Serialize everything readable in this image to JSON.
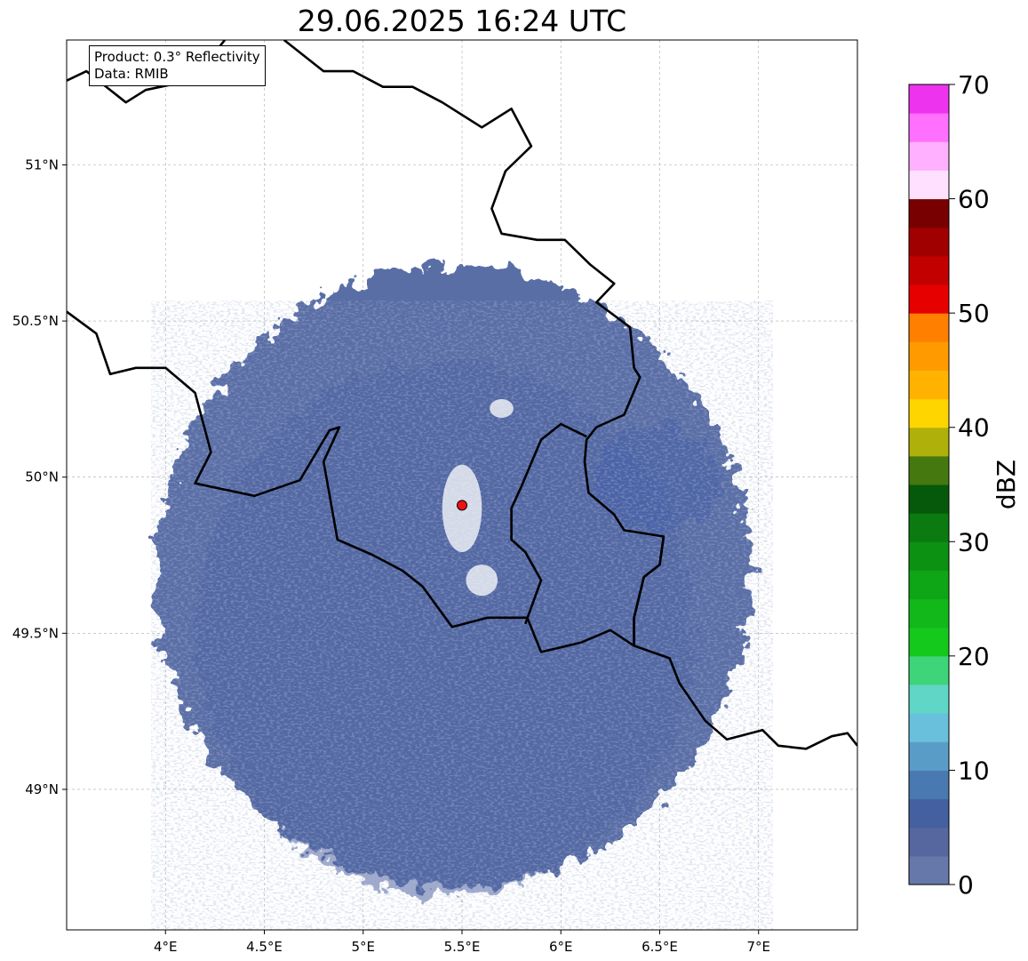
{
  "title": "29.06.2025 16:24 UTC",
  "info": {
    "product": "Product: 0.3° Reflectivity",
    "data": "Data: RMIB"
  },
  "map": {
    "lon_range": [
      3.5,
      7.5
    ],
    "lat_range": [
      48.55,
      51.4
    ],
    "lon_ticks": [
      {
        "v": 4.0,
        "label": "4°E"
      },
      {
        "v": 4.5,
        "label": "4.5°E"
      },
      {
        "v": 5.0,
        "label": "5°E"
      },
      {
        "v": 5.5,
        "label": "5.5°E"
      },
      {
        "v": 6.0,
        "label": "6°E"
      },
      {
        "v": 6.5,
        "label": "6.5°E"
      },
      {
        "v": 7.0,
        "label": "7°E"
      }
    ],
    "lat_ticks": [
      {
        "v": 51.0,
        "label": "51°N"
      },
      {
        "v": 50.5,
        "label": "50.5°N"
      },
      {
        "v": 50.0,
        "label": "50°N"
      },
      {
        "v": 49.5,
        "label": "49.5°N"
      },
      {
        "v": 49.0,
        "label": "49°N"
      }
    ],
    "radar_site": {
      "lon": 5.5,
      "lat": 49.91
    },
    "borders": [
      [
        [
          3.5,
          51.27
        ],
        [
          3.6,
          51.3
        ],
        [
          3.8,
          51.2
        ],
        [
          3.9,
          51.24
        ],
        [
          4.05,
          51.26
        ],
        [
          4.2,
          51.32
        ],
        [
          4.3,
          51.4
        ]
      ],
      [
        [
          4.6,
          51.4
        ],
        [
          4.8,
          51.3
        ],
        [
          4.95,
          51.3
        ],
        [
          5.1,
          51.25
        ],
        [
          5.25,
          51.25
        ],
        [
          5.4,
          51.2
        ],
        [
          5.6,
          51.12
        ],
        [
          5.75,
          51.18
        ],
        [
          5.85,
          51.06
        ],
        [
          5.72,
          50.98
        ],
        [
          5.65,
          50.86
        ],
        [
          5.7,
          50.78
        ],
        [
          5.88,
          50.76
        ],
        [
          6.02,
          50.76
        ],
        [
          6.15,
          50.68
        ],
        [
          6.27,
          50.62
        ],
        [
          6.18,
          50.56
        ],
        [
          6.35,
          50.48
        ],
        [
          6.37,
          50.35
        ],
        [
          6.4,
          50.32
        ],
        [
          6.32,
          50.2
        ],
        [
          6.18,
          50.16
        ],
        [
          6.13,
          50.12
        ],
        [
          6.12,
          50.05
        ],
        [
          6.14,
          49.95
        ],
        [
          6.27,
          49.88
        ],
        [
          6.32,
          49.83
        ],
        [
          6.52,
          49.81
        ],
        [
          6.5,
          49.72
        ],
        [
          6.42,
          49.68
        ],
        [
          6.37,
          49.55
        ],
        [
          6.37,
          49.46
        ],
        [
          6.55,
          49.42
        ],
        [
          6.6,
          49.34
        ],
        [
          6.73,
          49.22
        ],
        [
          6.84,
          49.16
        ],
        [
          7.02,
          49.19
        ],
        [
          7.1,
          49.14
        ],
        [
          7.24,
          49.13
        ],
        [
          7.37,
          49.17
        ],
        [
          7.45,
          49.18
        ],
        [
          7.5,
          49.14
        ]
      ],
      [
        [
          3.5,
          50.53
        ],
        [
          3.65,
          50.46
        ],
        [
          3.72,
          50.33
        ],
        [
          3.85,
          50.35
        ],
        [
          4.0,
          50.35
        ],
        [
          4.15,
          50.27
        ],
        [
          4.23,
          50.08
        ],
        [
          4.15,
          49.98
        ],
        [
          4.45,
          49.94
        ],
        [
          4.68,
          49.99
        ],
        [
          4.83,
          50.15
        ],
        [
          4.88,
          50.16
        ],
        [
          4.8,
          50.05
        ],
        [
          4.87,
          49.8
        ],
        [
          5.05,
          49.75
        ],
        [
          5.2,
          49.7
        ],
        [
          5.3,
          49.65
        ],
        [
          5.45,
          49.52
        ],
        [
          5.63,
          49.55
        ],
        [
          5.83,
          49.55
        ],
        [
          5.9,
          49.44
        ],
        [
          6.1,
          49.47
        ],
        [
          6.25,
          49.51
        ],
        [
          6.37,
          49.46
        ]
      ],
      [
        [
          5.82,
          49.53
        ],
        [
          5.9,
          49.67
        ],
        [
          5.82,
          49.76
        ],
        [
          5.75,
          49.8
        ],
        [
          5.75,
          49.9
        ],
        [
          5.8,
          49.97
        ],
        [
          5.9,
          50.12
        ],
        [
          6.0,
          50.17
        ],
        [
          6.13,
          50.13
        ]
      ],
      [
        [
          6.37,
          49.46
        ],
        [
          6.37,
          49.55
        ],
        [
          6.42,
          49.68
        ],
        [
          6.5,
          49.72
        ],
        [
          6.52,
          49.81
        ]
      ]
    ],
    "blank_patches": [
      {
        "lon": 5.6,
        "lat": 49.67,
        "rx": 0.08,
        "ry": 0.05
      },
      {
        "lon": 5.7,
        "lat": 50.22,
        "rx": 0.06,
        "ry": 0.03
      },
      {
        "lon": 5.5,
        "lat": 49.9,
        "rx": 0.1,
        "ry": 0.14
      }
    ]
  },
  "colorbar": {
    "label": "dBZ",
    "min": 0,
    "max": 70,
    "step": 2.5,
    "ticks": [
      {
        "v": 0,
        "label": "0"
      },
      {
        "v": 10,
        "label": "10"
      },
      {
        "v": 20,
        "label": "20"
      },
      {
        "v": 30,
        "label": "30"
      },
      {
        "v": 40,
        "label": "40"
      },
      {
        "v": 50,
        "label": "50"
      },
      {
        "v": 60,
        "label": "60"
      },
      {
        "v": 70,
        "label": "70"
      }
    ],
    "colors": [
      "#6677aa",
      "#55679e",
      "#4460a0",
      "#4a78b0",
      "#5a9cc8",
      "#68c0dc",
      "#60d6c6",
      "#3ed47a",
      "#14c81c",
      "#12b81a",
      "#0ea516",
      "#0d9112",
      "#0b7a10",
      "#06580a",
      "#467810",
      "#b0b00a",
      "#ffd500",
      "#ffb300",
      "#ff9b00",
      "#ff7f00",
      "#e60000",
      "#c30000",
      "#a00000",
      "#780000",
      "#ffe0ff",
      "#ffb0ff",
      "#ff70ff",
      "#ee33ee"
    ]
  }
}
